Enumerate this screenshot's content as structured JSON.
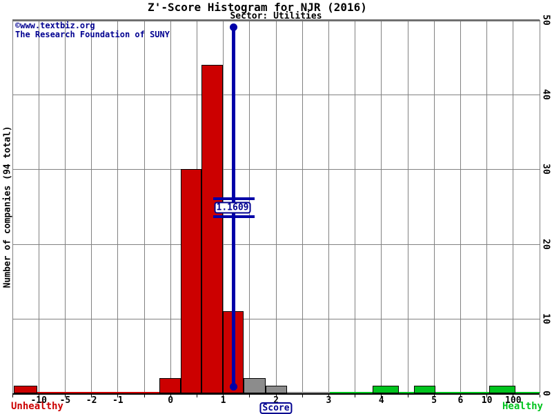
{
  "title": "Z'-Score Histogram for NJR (2016)",
  "subtitle": "Sector: Utilities",
  "watermark": {
    "line1": "©www.textbiz.org",
    "line2": "The Research Foundation of SUNY"
  },
  "y_axis": {
    "label": "Number of companies (94 total)",
    "ticks": [
      "0",
      "10",
      "20",
      "30",
      "40",
      "50"
    ],
    "max": 50
  },
  "x_axis": {
    "label": "Score",
    "left_caption": "Unhealthy",
    "right_caption": "Healthy",
    "ticks": [
      {
        "label": "-10",
        "edge": 1
      },
      {
        "label": "-5",
        "edge": 2
      },
      {
        "label": "-2",
        "edge": 3
      },
      {
        "label": "-1",
        "edge": 4
      },
      {
        "label": "0",
        "edge": 6
      },
      {
        "label": "1",
        "edge": 8
      },
      {
        "label": "2",
        "edge": 10
      },
      {
        "label": "3",
        "edge": 12
      },
      {
        "label": "4",
        "edge": 14
      },
      {
        "label": "5",
        "edge": 16
      },
      {
        "label": "6",
        "edge": 17
      },
      {
        "label": "10",
        "edge": 18
      },
      {
        "label": "100",
        "edge": 19
      }
    ]
  },
  "marker": {
    "label": "1.1609",
    "value": 1.1609
  },
  "colors": {
    "red": "#cc0000",
    "gray": "#8c8c8c",
    "green": "#00c41e",
    "navy": "#000090",
    "marker_blue": "#0000a8",
    "grid": "#808080",
    "top_border": "#707070",
    "axis": "#000000"
  },
  "chart_data": {
    "type": "bar",
    "subtype": "histogram",
    "title": "Z'-Score Histogram for NJR (2016)",
    "subtitle": "Sector: Utilities",
    "company": "NJR",
    "year": "2016",
    "sector": "Utilities",
    "xlabel": "Score",
    "ylabel": "Number of companies (94 total)",
    "total_companies": 94,
    "ylim": [
      0,
      50
    ],
    "grid": true,
    "zscore_marker": 1.1609,
    "x_tick_labels": [
      "-10",
      "-5",
      "-2",
      "-1",
      "0",
      "1",
      "2",
      "3",
      "4",
      "5",
      "6",
      "10",
      "100"
    ],
    "y_tick_values": [
      0,
      10,
      20,
      30,
      40,
      50
    ],
    "bins": [
      {
        "range": "<= -10",
        "count": 1,
        "color": "red"
      },
      {
        "range": "-0.5 to 0",
        "count": 2,
        "color": "red"
      },
      {
        "range": "0 to 0.5",
        "count": 30,
        "color": "red"
      },
      {
        "range": "0.5 to 1",
        "count": 44,
        "color": "red"
      },
      {
        "range": "1 to 1.5",
        "count": 11,
        "color": "red"
      },
      {
        "range": "1.5 to 2",
        "count": 2,
        "color": "gray"
      },
      {
        "range": "2 to 2.5",
        "count": 1,
        "color": "gray"
      },
      {
        "range": "~4",
        "count": 1,
        "color": "green"
      },
      {
        "range": "~5",
        "count": 1,
        "color": "green"
      },
      {
        "range": "10 to 100",
        "count": 1,
        "color": "green"
      }
    ],
    "zone_strips": [
      {
        "zone": "unhealthy",
        "color": "red"
      },
      {
        "zone": "middle",
        "color": "gray"
      },
      {
        "zone": "healthy",
        "color": "green"
      }
    ]
  }
}
